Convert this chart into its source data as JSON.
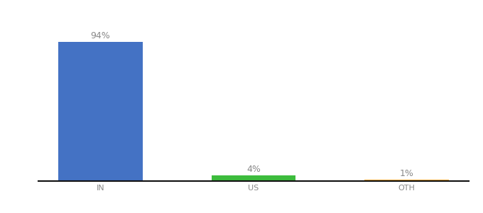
{
  "categories": [
    "IN",
    "US",
    "OTH"
  ],
  "values": [
    94,
    4,
    1
  ],
  "bar_colors": [
    "#4472c4",
    "#3dbc3d",
    "#f0a830"
  ],
  "label_texts": [
    "94%",
    "4%",
    "1%"
  ],
  "ylim": [
    0,
    105
  ],
  "background_color": "#ffffff",
  "bar_width": 0.55,
  "label_fontsize": 9,
  "tick_fontsize": 8,
  "label_color": "#888888",
  "tick_color": "#888888",
  "spine_color": "#111111"
}
